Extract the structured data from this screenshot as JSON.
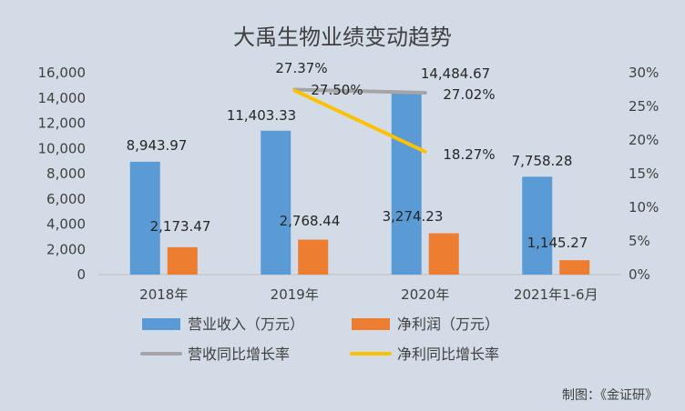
{
  "chart_data": {
    "type": "bar",
    "title": "大禹生物业绩变动趋势",
    "categories": [
      "2018年",
      "2019年",
      "2020年",
      "2021年1-6月"
    ],
    "series": [
      {
        "name": "营业收入（万元）",
        "kind": "bar",
        "axis": "left",
        "color": "#5b9bd5",
        "values": [
          8943.97,
          11403.33,
          14484.67,
          7758.28
        ],
        "labels": [
          "8,943.97",
          "11,403.33",
          "14,484.67",
          "7,758.28"
        ]
      },
      {
        "name": "净利润（万元）",
        "kind": "bar",
        "axis": "left",
        "color": "#ed7d31",
        "values": [
          2173.47,
          2768.44,
          3274.23,
          1145.27
        ],
        "labels": [
          "2,173.47",
          "2,768.44",
          "3,274.23",
          "1,145.27"
        ]
      },
      {
        "name": "营收同比增长率",
        "kind": "line",
        "axis": "right",
        "color": "#a5a5a5",
        "values": [
          null,
          27.5,
          27.02,
          null
        ],
        "labels": [
          "",
          "27.50%",
          "27.02%",
          ""
        ]
      },
      {
        "name": "净利同比增长率",
        "kind": "line",
        "axis": "right",
        "color": "#ffc000",
        "values": [
          null,
          27.37,
          18.27,
          null
        ],
        "labels": [
          "",
          "27.37%",
          "18.27%",
          ""
        ]
      }
    ],
    "y_left": {
      "min": 0,
      "max": 16000,
      "ticks": [
        "0",
        "2,000",
        "4,000",
        "6,000",
        "8,000",
        "10,000",
        "12,000",
        "14,000",
        "16,000"
      ]
    },
    "y_right": {
      "min": 0,
      "max": 30,
      "ticks": [
        "0%",
        "5%",
        "10%",
        "15%",
        "20%",
        "25%",
        "30%"
      ]
    },
    "grid": false,
    "legend": "bottom"
  },
  "credit": "制图：《金证研》"
}
